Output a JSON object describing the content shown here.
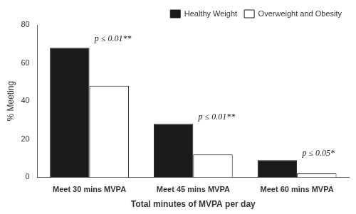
{
  "chart_data": {
    "type": "bar",
    "categories": [
      "Meet 30 mins MVPA",
      "Meet 45 mins MVPA",
      "Meet 60 mins MVPA"
    ],
    "series": [
      {
        "name": "Healthy Weight",
        "color": "#1a1a1a",
        "values": [
          68,
          28,
          9
        ]
      },
      {
        "name": "Overweight and Obesity",
        "color": "#ffffff",
        "values": [
          48,
          12,
          2
        ]
      }
    ],
    "xlabel": "Total minutes of MVPA per day",
    "ylabel": "% Meeting",
    "ylim": [
      0,
      80
    ],
    "yticks": [
      0,
      20,
      40,
      60,
      80
    ],
    "grid": false,
    "legend": "upper right",
    "annotations": [
      {
        "text": "p ≤ 0.01**",
        "category": "Meet 30 mins MVPA",
        "y": 70
      },
      {
        "text": "p ≤ 0.01**",
        "category": "Meet 45 mins MVPA",
        "y": 29
      },
      {
        "text": "p ≤ 0.05*",
        "category": "Meet 60 mins MVPA",
        "y": 10
      }
    ]
  }
}
